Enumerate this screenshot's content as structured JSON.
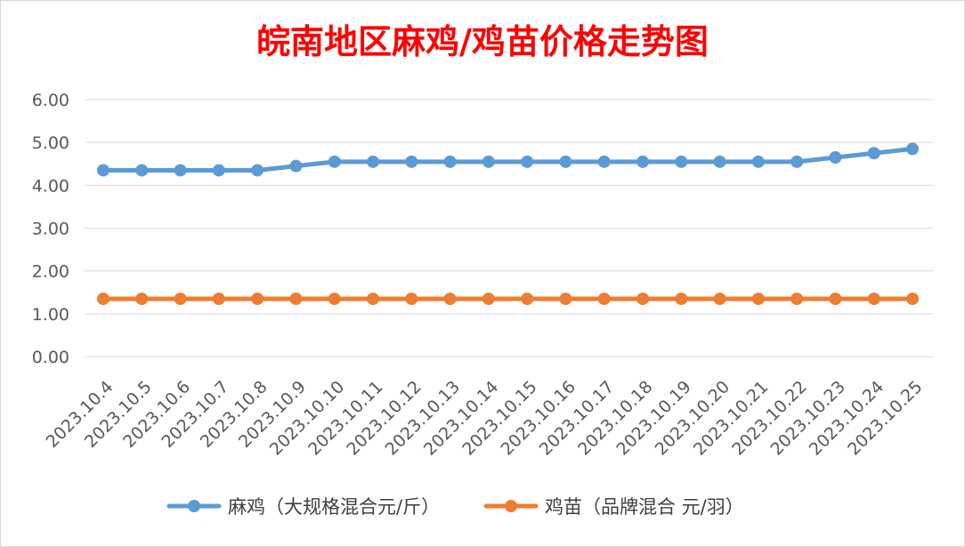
{
  "chart_data": {
    "type": "line",
    "title": "皖南地区麻鸡/鸡苗价格走势图",
    "xlabel": "",
    "ylabel": "",
    "ylim": [
      0,
      6
    ],
    "yticks": [
      "0.00",
      "1.00",
      "2.00",
      "3.00",
      "4.00",
      "5.00",
      "6.00"
    ],
    "grid": true,
    "legend_position": "bottom",
    "categories": [
      "2023.10.4",
      "2023.10.5",
      "2023.10.6",
      "2023.10.7",
      "2023.10.8",
      "2023.10.9",
      "2023.10.10",
      "2023.10.11",
      "2023.10.12",
      "2023.10.13",
      "2023.10.14",
      "2023.10.15",
      "2023.10.16",
      "2023.10.17",
      "2023.10.18",
      "2023.10.19",
      "2023.10.20",
      "2023.10.21",
      "2023.10.22",
      "2023.10.23",
      "2023.10.24",
      "2023.10.25"
    ],
    "series": [
      {
        "name": "麻鸡（大规格混合元/斤）",
        "color": "#5b9bd5",
        "values": [
          4.35,
          4.35,
          4.35,
          4.35,
          4.35,
          4.45,
          4.55,
          4.55,
          4.55,
          4.55,
          4.55,
          4.55,
          4.55,
          4.55,
          4.55,
          4.55,
          4.55,
          4.55,
          4.55,
          4.65,
          4.75,
          4.85
        ]
      },
      {
        "name": "鸡苗（品牌混合 元/羽）",
        "color": "#ed7d31",
        "values": [
          1.35,
          1.35,
          1.35,
          1.35,
          1.35,
          1.35,
          1.35,
          1.35,
          1.35,
          1.35,
          1.35,
          1.35,
          1.35,
          1.35,
          1.35,
          1.35,
          1.35,
          1.35,
          1.35,
          1.35,
          1.35,
          1.35
        ]
      }
    ]
  }
}
